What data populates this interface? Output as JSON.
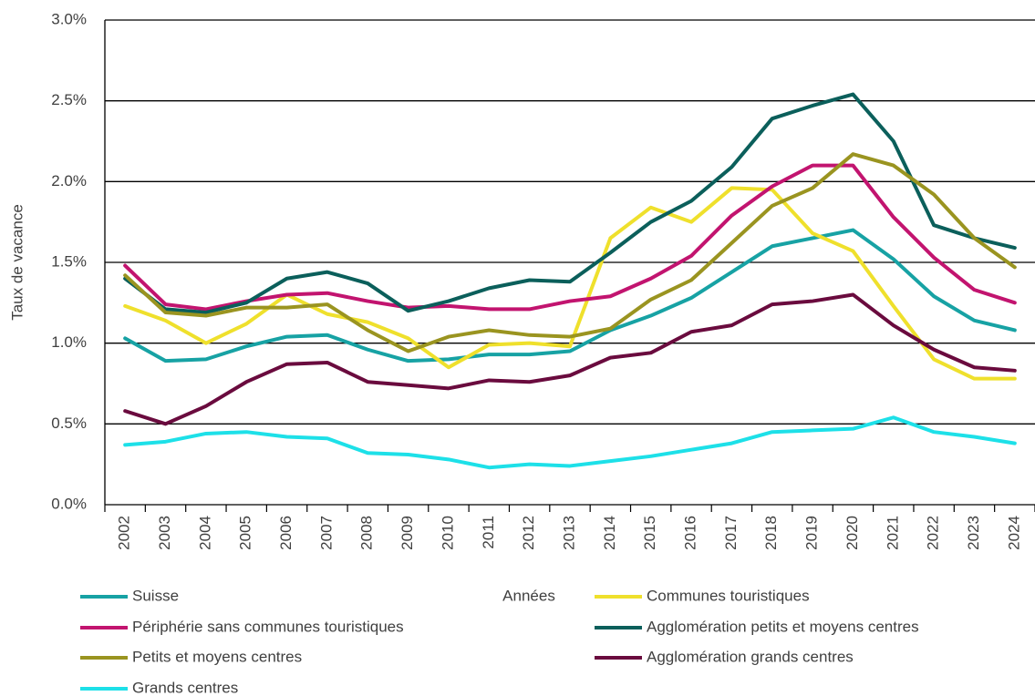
{
  "chart_data": {
    "type": "line",
    "y_label": "Taux de vacance",
    "x_label": "Années",
    "categories": [
      "2002",
      "2003",
      "2004",
      "2005",
      "2006",
      "2007",
      "2008",
      "2009",
      "2010",
      "2011",
      "2012",
      "2013",
      "2014",
      "2015",
      "2016",
      "2017",
      "2018",
      "2019",
      "2020",
      "2021",
      "2022",
      "2023",
      "2024"
    ],
    "ylim": [
      0,
      3
    ],
    "yticks": [
      {
        "value": 0,
        "label": "0.0%"
      },
      {
        "value": 0.5,
        "label": "0.5%"
      },
      {
        "value": 1,
        "label": "1.0%"
      },
      {
        "value": 1.5,
        "label": "1.5%"
      },
      {
        "value": 2,
        "label": "2.0%"
      },
      {
        "value": 2.5,
        "label": "2.5%"
      },
      {
        "value": 3,
        "label": "3.0%"
      }
    ],
    "grid": true,
    "series": [
      {
        "name": "Suisse",
        "color": "#17a2a4",
        "values": [
          1.03,
          0.89,
          0.9,
          0.98,
          1.04,
          1.05,
          0.96,
          0.89,
          0.9,
          0.93,
          0.93,
          0.95,
          1.08,
          1.17,
          1.28,
          1.44,
          1.6,
          1.65,
          1.7,
          1.52,
          1.29,
          1.14,
          1.08
        ]
      },
      {
        "name": "Communes touristiques",
        "color": "#efe02c",
        "values": [
          1.23,
          1.14,
          1.0,
          1.12,
          1.3,
          1.18,
          1.13,
          1.03,
          0.85,
          0.99,
          1.0,
          0.98,
          1.65,
          1.84,
          1.75,
          1.96,
          1.95,
          1.68,
          1.57,
          1.23,
          0.9,
          0.78,
          0.78
        ]
      },
      {
        "name": "Périphérie sans communes touristiques",
        "color": "#c2146f",
        "values": [
          1.48,
          1.24,
          1.21,
          1.26,
          1.3,
          1.31,
          1.26,
          1.22,
          1.23,
          1.21,
          1.21,
          1.26,
          1.29,
          1.4,
          1.54,
          1.79,
          1.97,
          2.1,
          2.1,
          1.78,
          1.53,
          1.33,
          1.25
        ]
      },
      {
        "name": "Agglomération petits et moyens centres",
        "color": "#0b5f5b",
        "values": [
          1.4,
          1.21,
          1.19,
          1.25,
          1.4,
          1.44,
          1.37,
          1.2,
          1.26,
          1.34,
          1.39,
          1.38,
          1.56,
          1.75,
          1.88,
          2.09,
          2.39,
          2.47,
          2.54,
          2.25,
          1.73,
          1.65,
          1.59
        ]
      },
      {
        "name": "Petits et moyens centres",
        "color": "#9a9420",
        "values": [
          1.42,
          1.19,
          1.17,
          1.22,
          1.22,
          1.24,
          1.08,
          0.95,
          1.04,
          1.08,
          1.05,
          1.04,
          1.09,
          1.27,
          1.39,
          1.62,
          1.85,
          1.96,
          2.17,
          2.1,
          1.92,
          1.65,
          1.47
        ]
      },
      {
        "name": "Agglomération grands centres",
        "color": "#6a0b3e",
        "values": [
          0.58,
          0.5,
          0.61,
          0.76,
          0.87,
          0.88,
          0.76,
          0.74,
          0.72,
          0.77,
          0.76,
          0.8,
          0.91,
          0.94,
          1.07,
          1.11,
          1.24,
          1.26,
          1.3,
          1.11,
          0.96,
          0.85,
          0.83
        ]
      },
      {
        "name": "Grands centres",
        "color": "#1de0e8",
        "values": [
          0.37,
          0.39,
          0.44,
          0.45,
          0.42,
          0.41,
          0.32,
          0.31,
          0.28,
          0.23,
          0.25,
          0.24,
          0.27,
          0.3,
          0.34,
          0.38,
          0.45,
          0.46,
          0.47,
          0.54,
          0.45,
          0.42,
          0.38
        ]
      }
    ]
  }
}
